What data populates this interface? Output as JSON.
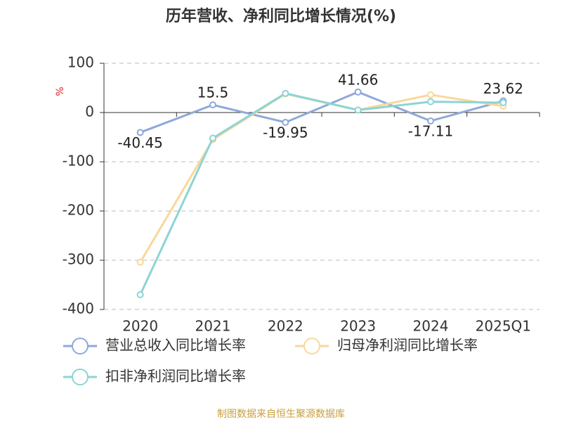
{
  "chart_data": {
    "type": "line",
    "title": "历年营收、净利同比增长情况(%)",
    "y_label": "%",
    "categories": [
      "2020",
      "2021",
      "2022",
      "2023",
      "2024",
      "2025Q1"
    ],
    "series": [
      {
        "name": "营业总收入同比增长率",
        "color": "#8fa8d8",
        "values": [
          -40.45,
          15.5,
          -19.95,
          41.66,
          -17.11,
          23.62
        ],
        "show_labels": true
      },
      {
        "name": "归母净利润同比增长率",
        "color": "#f9d89a",
        "values": [
          -304,
          -55,
          38,
          5,
          36,
          13
        ]
      },
      {
        "name": "扣非净利润同比增长率",
        "color": "#8dd4d4",
        "values": [
          -370,
          -52,
          39,
          5,
          22,
          20
        ]
      }
    ],
    "ylim": [
      -400,
      100
    ],
    "yticks": [
      100,
      0,
      -100,
      -200,
      -300,
      -400
    ],
    "grid": true,
    "source": "制图数据来自恒生聚源数据库"
  }
}
